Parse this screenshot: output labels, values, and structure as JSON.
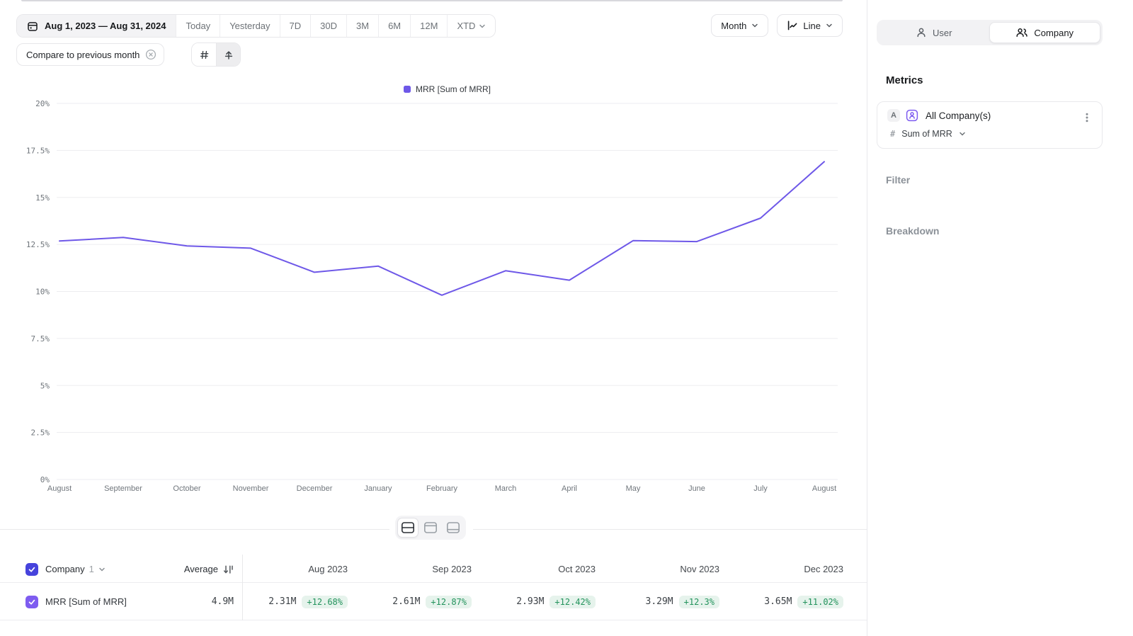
{
  "toolbar": {
    "date_range": "Aug 1, 2023 — Aug 31, 2024",
    "presets": [
      "Today",
      "Yesterday",
      "7D",
      "30D",
      "3M",
      "6M",
      "12M"
    ],
    "xtd_label": "XTD",
    "compare_chip": "Compare to previous month",
    "granularity": "Month",
    "chart_type": "Line"
  },
  "legend": {
    "label": "MRR [Sum of MRR]"
  },
  "chart_data": {
    "type": "line",
    "title": "",
    "categories": [
      "August",
      "September",
      "October",
      "November",
      "December",
      "January",
      "February",
      "March",
      "April",
      "May",
      "June",
      "July",
      "August"
    ],
    "series": [
      {
        "name": "MRR [Sum of MRR]",
        "values": [
          12.68,
          12.87,
          12.42,
          12.3,
          11.02,
          11.35,
          9.8,
          11.1,
          10.6,
          12.7,
          12.65,
          13.9,
          16.9
        ]
      }
    ],
    "ylabel": "",
    "xlabel": "",
    "ylim": [
      0,
      20
    ],
    "ytick_labels": [
      "0%",
      "2.5%",
      "5%",
      "7.5%",
      "10%",
      "12.5%",
      "15%",
      "17.5%",
      "20%"
    ],
    "grid": true,
    "legend_position": "top",
    "line_color": "#6e58e8"
  },
  "table": {
    "entity_label": "Company",
    "entity_count": "1",
    "average_label": "Average",
    "columns": [
      "Aug 2023",
      "Sep 2023",
      "Oct 2023",
      "Nov 2023",
      "Dec 2023"
    ],
    "row": {
      "label": "MRR [Sum of MRR]",
      "average": "4.9M",
      "values": [
        "2.31M",
        "2.61M",
        "2.93M",
        "3.29M",
        "3.65M"
      ],
      "deltas": [
        "+12.68%",
        "+12.87%",
        "+12.42%",
        "+12.3%",
        "+11.02%"
      ]
    }
  },
  "sidebar": {
    "toggle": {
      "user": "User",
      "company": "Company"
    },
    "metrics_title": "Metrics",
    "metric_card": {
      "badge": "A",
      "name": "All Company(s)",
      "agg_prefix": "#",
      "aggregation": "Sum of MRR"
    },
    "filter_label": "Filter",
    "breakdown_label": "Breakdown"
  },
  "colors": {
    "accent_line": "#6e58e8",
    "header_checkbox": "#4643dc",
    "row_checkbox": "#7e5cf0",
    "delta_badge_bg": "#e6f3ec",
    "delta_badge_text": "#23935c"
  }
}
